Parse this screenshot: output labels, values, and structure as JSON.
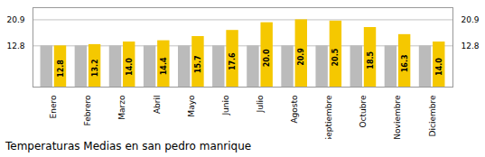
{
  "chart_data": {
    "type": "bar",
    "title": "Temperaturas Medias en san pedro manrique",
    "categories": [
      "Enero",
      "Febrero",
      "Marzo",
      "Abril",
      "Mayo",
      "Junio",
      "Julio",
      "Agosto",
      "Septiembre",
      "Octubre",
      "Noviembre",
      "Diciembre"
    ],
    "series": [
      {
        "color": "#BBBBBB",
        "values": [
          12.8,
          12.8,
          12.8,
          12.8,
          12.8,
          12.8,
          12.8,
          12.8,
          12.8,
          12.8,
          12.8,
          12.8
        ]
      },
      {
        "color": "#F5C800",
        "values": [
          12.8,
          13.2,
          14.0,
          14.4,
          15.7,
          17.6,
          20.0,
          20.9,
          20.5,
          18.5,
          16.3,
          14.0
        ],
        "data_labels": true,
        "value_labels": [
          "12.8",
          "13.2",
          "14.0",
          "14.4",
          "15.7",
          "17.6",
          "20.0",
          "20.9",
          "20.5",
          "18.5",
          "16.3",
          "14.0"
        ]
      }
    ],
    "ylim": [
      0,
      24.662
    ],
    "yticks": [
      12.8,
      20.9
    ],
    "grid": true
  }
}
